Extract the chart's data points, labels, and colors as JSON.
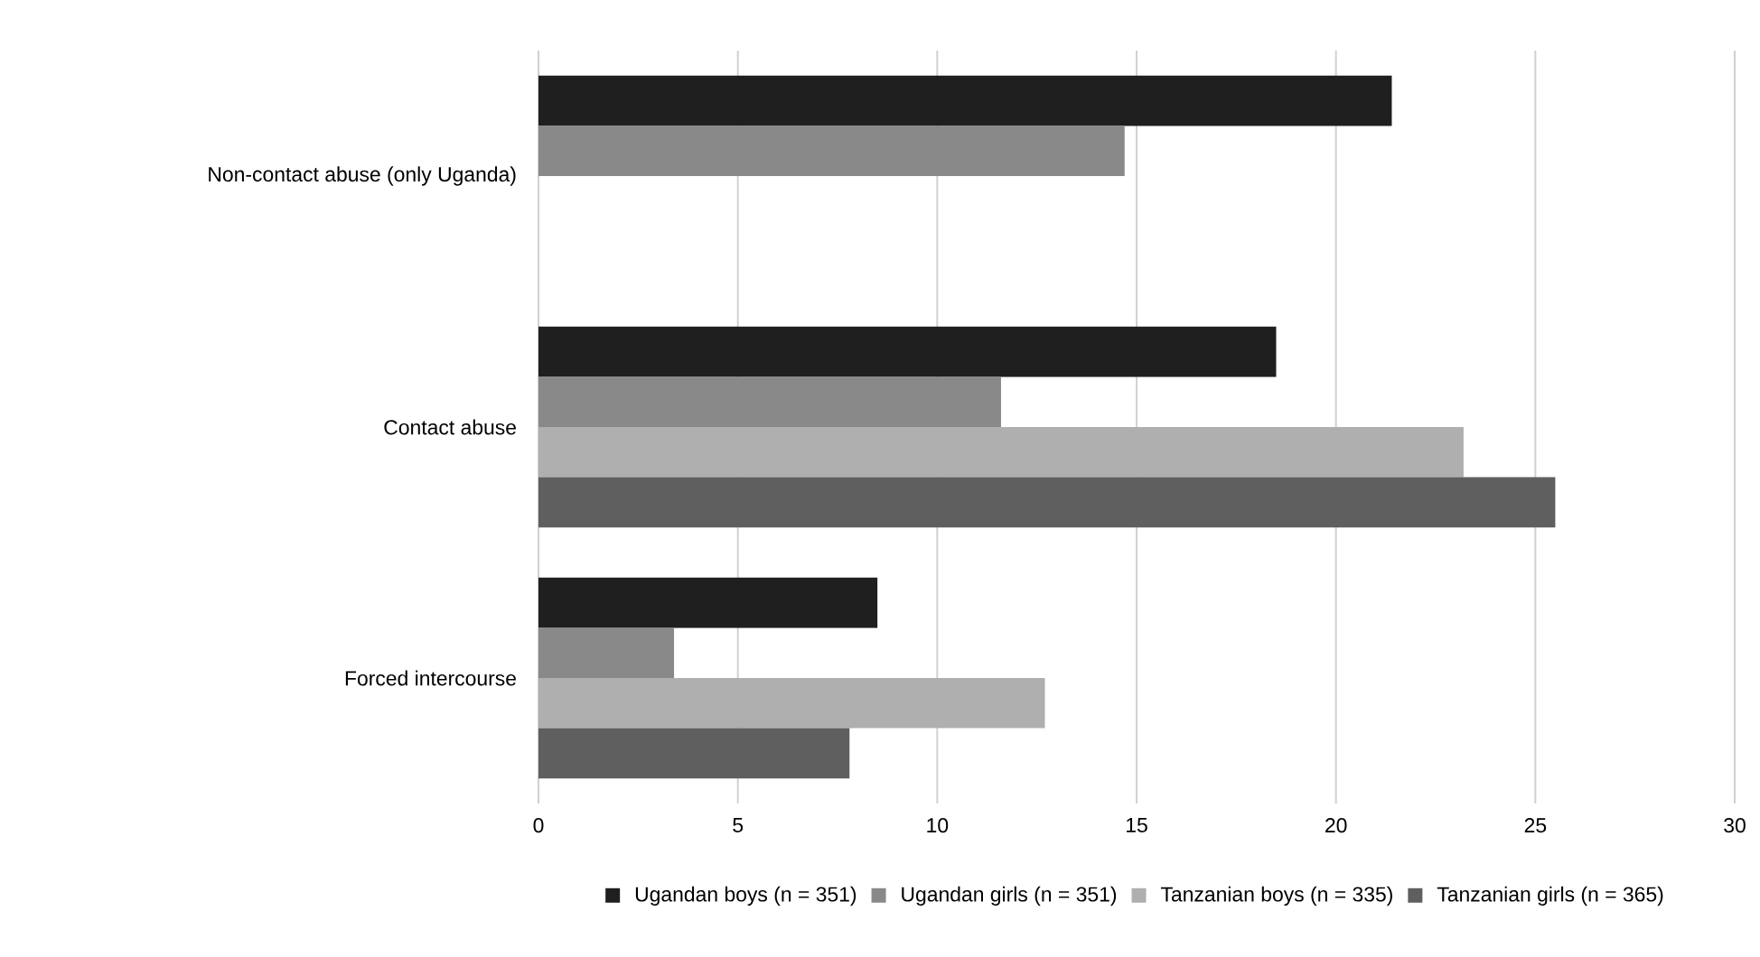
{
  "chart_data": {
    "type": "bar",
    "orientation": "horizontal",
    "categories": [
      "Non-contact abuse (only Uganda)",
      "Contact abuse",
      "Forced intercourse"
    ],
    "series": [
      {
        "name": "Ugandan boys (n = 351)",
        "color": "#1f1f1f",
        "values": [
          21.4,
          18.5,
          8.5
        ]
      },
      {
        "name": "Ugandan girls (n = 351)",
        "color": "#898989",
        "values": [
          14.7,
          11.6,
          3.4
        ]
      },
      {
        "name": "Tanzanian boys (n = 335)",
        "color": "#afafaf",
        "values": [
          null,
          23.2,
          12.7
        ]
      },
      {
        "name": "Tanzanian girls (n = 365)",
        "color": "#5f5f5f",
        "values": [
          null,
          25.5,
          7.8
        ]
      }
    ],
    "xlim": [
      0,
      30
    ],
    "xticks": [
      0,
      5,
      10,
      15,
      20,
      25,
      30
    ],
    "grid": "x",
    "legend": "bottom"
  }
}
